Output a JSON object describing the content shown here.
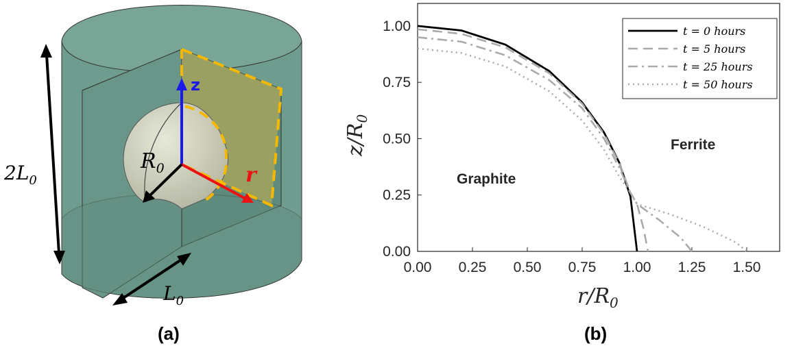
{
  "figure_a": {
    "caption": "(a)",
    "label_2L0": "2L",
    "label_2L0_sub": "0",
    "label_L0": "L",
    "label_L0_sub": "0",
    "label_R0": "R",
    "label_R0_sub": "0",
    "label_z": "z",
    "label_r": "r",
    "colors": {
      "cylinder": "#6e9c8f",
      "sphere": "#cfcfbf",
      "plane": "#c8b24a",
      "dash": "#f5b800",
      "z_axis": "#1a1aee",
      "r_axis": "#ee1111"
    }
  },
  "figure_b": {
    "caption": "(b)",
    "region_graphite": "Graphite",
    "region_ferrite": "Ferrite",
    "xlabel": "r/R",
    "xlabel_sub": "0",
    "ylabel": "z/R",
    "ylabel_sub": "0",
    "legend": [
      {
        "name": "t = 0 hours",
        "style": "solid",
        "color": "#000000"
      },
      {
        "name": "t = 5 hours",
        "style": "dashed",
        "color": "#aaaaaa"
      },
      {
        "name": "t = 25 hours",
        "style": "dashdot",
        "color": "#aaaaaa"
      },
      {
        "name": "t = 50 hours",
        "style": "dotted",
        "color": "#aaaaaa"
      }
    ]
  },
  "chart_data": {
    "type": "line",
    "title": "",
    "xlabel": "r/R0",
    "ylabel": "z/R0",
    "xlim": [
      0,
      1.65
    ],
    "ylim": [
      0,
      1.1
    ],
    "xticks": [
      "0.00",
      "0.25",
      "0.50",
      "0.75",
      "1.00",
      "1.25",
      "1.50"
    ],
    "yticks": [
      "0.00",
      "0.25",
      "0.50",
      "0.75",
      "1.00"
    ],
    "legend_position": "top-right",
    "grid": false,
    "series": [
      {
        "name": "t = 0 hours",
        "x": [
          0,
          0.2,
          0.4,
          0.6,
          0.75,
          0.85,
          0.92,
          0.97,
          1.0
        ],
        "y": [
          1.0,
          0.98,
          0.917,
          0.8,
          0.661,
          0.527,
          0.392,
          0.243,
          0.0
        ]
      },
      {
        "name": "t = 5 hours",
        "x": [
          0,
          0.2,
          0.4,
          0.6,
          0.75,
          0.85,
          0.92,
          0.97,
          1.0,
          1.03,
          1.05
        ],
        "y": [
          0.985,
          0.965,
          0.905,
          0.79,
          0.655,
          0.52,
          0.39,
          0.26,
          0.21,
          0.1,
          0.0
        ]
      },
      {
        "name": "t = 25 hours",
        "x": [
          0,
          0.2,
          0.4,
          0.6,
          0.75,
          0.85,
          0.92,
          0.97,
          1.0,
          1.1,
          1.2,
          1.25
        ],
        "y": [
          0.95,
          0.93,
          0.87,
          0.76,
          0.635,
          0.5,
          0.37,
          0.26,
          0.21,
          0.14,
          0.06,
          0.0
        ]
      },
      {
        "name": "t = 50 hours",
        "x": [
          0,
          0.2,
          0.4,
          0.6,
          0.75,
          0.85,
          0.92,
          0.97,
          1.0,
          1.15,
          1.3,
          1.45,
          1.5
        ],
        "y": [
          0.9,
          0.88,
          0.82,
          0.71,
          0.58,
          0.45,
          0.33,
          0.26,
          0.21,
          0.165,
          0.11,
          0.04,
          0.0
        ]
      }
    ]
  }
}
